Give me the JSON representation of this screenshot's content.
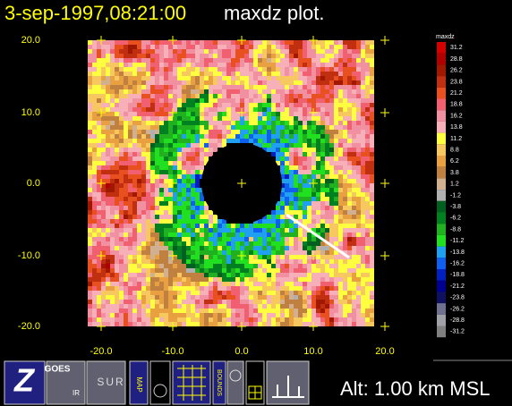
{
  "header": {
    "datetime": "3-sep-1997,08:21:00",
    "plot": "maxdz plot."
  },
  "plot": {
    "y_labels": [
      "20.0",
      "10.0",
      "0.0",
      "-10.0",
      "-20.0"
    ],
    "x_labels": [
      "-20.0",
      "-10.0",
      "0.0",
      "10.0",
      "20.0"
    ]
  },
  "colorbar": {
    "title": "maxdz",
    "entries": [
      {
        "label": "31.2",
        "color": "#d40000"
      },
      {
        "label": "28.8",
        "color": "#b00000"
      },
      {
        "label": "26.2",
        "color": "#a01800"
      },
      {
        "label": "23.8",
        "color": "#c03010"
      },
      {
        "label": "21.2",
        "color": "#e85020"
      },
      {
        "label": "18.8",
        "color": "#f06070"
      },
      {
        "label": "16.2",
        "color": "#f090a0"
      },
      {
        "label": "13.8",
        "color": "#f8b0b8"
      },
      {
        "label": "11.2",
        "color": "#ffff40"
      },
      {
        "label": "8.8",
        "color": "#f8c860"
      },
      {
        "label": "6.2",
        "color": "#e8a040"
      },
      {
        "label": "3.8",
        "color": "#c08040"
      },
      {
        "label": "1.2",
        "color": "#d0b090"
      },
      {
        "label": "-1.2",
        "color": "#b0b0b0"
      },
      {
        "label": "-3.8",
        "color": "#006020"
      },
      {
        "label": "-6.2",
        "color": "#008020"
      },
      {
        "label": "-8.8",
        "color": "#20b020"
      },
      {
        "label": "-11.2",
        "color": "#20e020"
      },
      {
        "label": "-13.8",
        "color": "#20a0f0"
      },
      {
        "label": "-16.2",
        "color": "#1060f0"
      },
      {
        "label": "-18.8",
        "color": "#0020c0"
      },
      {
        "label": "-21.2",
        "color": "#000090"
      },
      {
        "label": "-23.8",
        "color": "#101060"
      },
      {
        "label": "-26.2",
        "color": "#707090"
      },
      {
        "label": "-28.8",
        "color": "#a0a0a8"
      },
      {
        "label": "-31.2",
        "color": "#808080"
      }
    ]
  },
  "toolbar": {
    "buttons": [
      "Z",
      "GOES",
      "IR",
      "SUR",
      "MAP",
      "BOUNDS"
    ]
  },
  "status": {
    "altitude": "Alt: 1.00 km MSL"
  }
}
